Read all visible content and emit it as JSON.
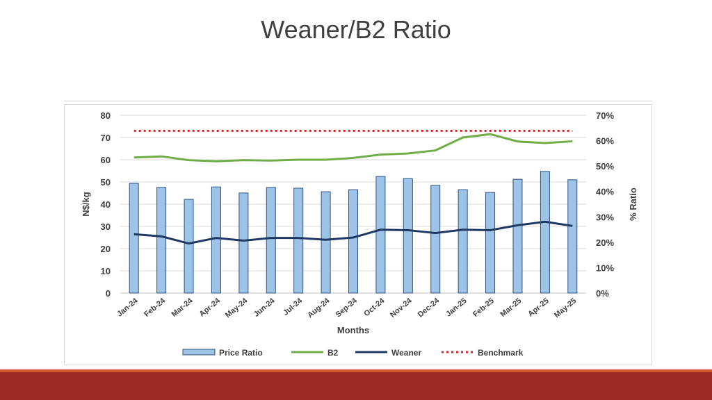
{
  "slide": {
    "title": "Weaner/B2 Ratio"
  },
  "chart_data": {
    "type": "bar+line",
    "categories": [
      "Jan-24",
      "Feb-24",
      "Mar-24",
      "Apr-24",
      "May-24",
      "Jun-24",
      "Jul-24",
      "Aug-24",
      "Sep-24",
      "Oct-24",
      "Nov-24",
      "Dec-24",
      "Jan-25",
      "Feb-25",
      "Mar-25",
      "Apr-25",
      "May-25"
    ],
    "xlabel": "Months",
    "ylabel": "N$/kg",
    "y2label": "% Ratio",
    "ylim": [
      0,
      80
    ],
    "yticks": [
      "0",
      "10",
      "20",
      "30",
      "40",
      "50",
      "60",
      "70",
      "80"
    ],
    "y2lim": [
      0,
      70
    ],
    "y2ticks": [
      "0%",
      "10%",
      "20%",
      "30%",
      "40%",
      "50%",
      "60%",
      "70%"
    ],
    "grid": true,
    "legend_position": "bottom",
    "series": [
      {
        "name": "Price Ratio",
        "type": "bar",
        "axis": "right",
        "color": "#9dc3e6",
        "values": [
          43.2,
          41.6,
          36.9,
          41.8,
          39.4,
          41.6,
          41.3,
          39.9,
          40.7,
          45.9,
          45.1,
          42.4,
          40.7,
          39.6,
          44.8,
          47.9,
          44.6
        ]
      },
      {
        "name": "B2",
        "type": "line",
        "axis": "left",
        "color": "#70ad47",
        "values": [
          61,
          61.5,
          59.8,
          59.3,
          59.8,
          59.6,
          60,
          60,
          60.8,
          62.3,
          62.8,
          64.2,
          70,
          71.5,
          68.2,
          67.5,
          68.3
        ]
      },
      {
        "name": "Weaner",
        "type": "line",
        "axis": "left",
        "color": "#1f3864",
        "values": [
          26.5,
          25.5,
          22.3,
          24.8,
          23.6,
          24.8,
          24.8,
          24,
          25,
          28.5,
          28.3,
          27,
          28.5,
          28.3,
          30.5,
          32.1,
          30.2
        ]
      },
      {
        "name": "Benchmark",
        "type": "dotted-line",
        "axis": "left",
        "color": "#e0202a",
        "values": [
          73,
          73,
          73,
          73,
          73,
          73,
          73,
          73,
          73,
          73,
          73,
          73,
          73,
          73,
          73,
          73,
          73
        ]
      }
    ]
  }
}
